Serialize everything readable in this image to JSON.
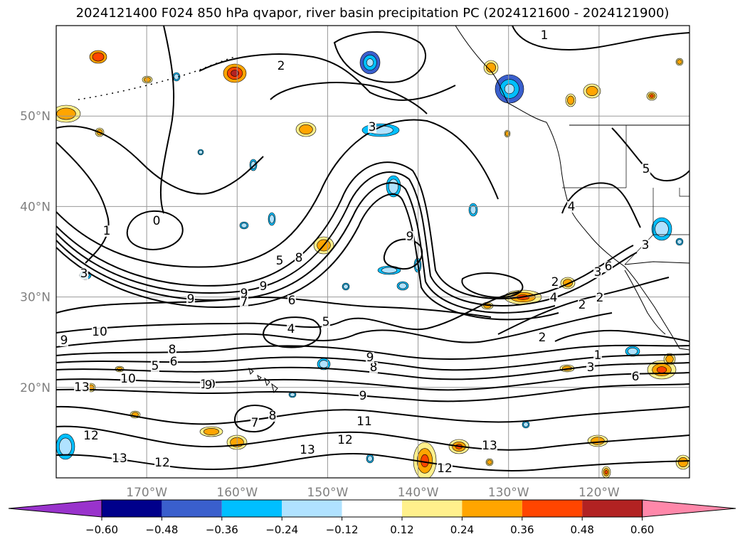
{
  "title": "2024121400 F024 850 hPa qvapor, river basin precipitation PC (2024121600 - 2024121900)",
  "map": {
    "lon_range": [
      -180,
      -110
    ],
    "lat_range": [
      10,
      60
    ],
    "lat_labels": [
      "50°N",
      "40°N",
      "30°N",
      "20°N"
    ],
    "lat_values": [
      50,
      40,
      30,
      20
    ],
    "lon_labels": [
      "170°W",
      "160°W",
      "150°W",
      "140°W",
      "130°W",
      "120°W"
    ],
    "lon_values": [
      -170,
      -160,
      -150,
      -140,
      -130,
      -120
    ],
    "grid": true,
    "contour_labels": [
      "1",
      "2",
      "3",
      "0",
      "1",
      "3",
      "9",
      "8",
      "5",
      "9",
      "9",
      "9",
      "6",
      "7",
      "4",
      "5",
      "10",
      "3",
      "2",
      "4",
      "2",
      "2",
      "6",
      "10",
      "9",
      "8",
      "6",
      "5",
      "8",
      "9",
      "9",
      "13",
      "10",
      "7",
      "8",
      "9",
      "11",
      "12",
      "13",
      "12",
      "13",
      "12",
      "12",
      "13",
      "2",
      "3",
      "1",
      "4",
      "3",
      "5",
      "6"
    ]
  },
  "colorbar": {
    "ticks": [
      "−0.60",
      "−0.48",
      "−0.36",
      "−0.24",
      "−0.12",
      "0.12",
      "0.24",
      "0.36",
      "0.48",
      "0.60"
    ],
    "colors": [
      "#9933cc",
      "#00008b",
      "#3a5fcd",
      "#00bfff",
      "#b0e2ff",
      "#ffffff",
      "#fff08c",
      "#ffa500",
      "#ff4500",
      "#b22222",
      "#ff88aa"
    ]
  }
}
